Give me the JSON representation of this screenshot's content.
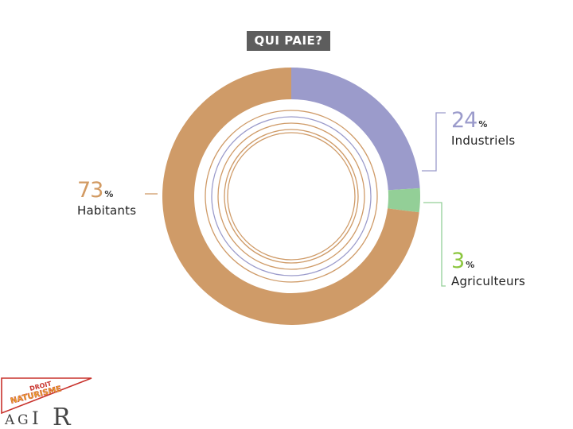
{
  "title": "QUI PAIE?",
  "chart_data": {
    "type": "pie",
    "title": "QUI PAIE?",
    "categories": [
      "Industriels",
      "Agriculteurs",
      "Habitants"
    ],
    "values": [
      24,
      3,
      73
    ],
    "unit": "%",
    "colors": [
      "#9b9bcb",
      "#93cf97",
      "#cf9b68"
    ]
  },
  "labels": [
    {
      "value": "24",
      "unit": "%",
      "name": "Industriels",
      "color": "#9b9bcb"
    },
    {
      "value": "3",
      "unit": "%",
      "name": "Agriculteurs",
      "color": "#8cc63f"
    },
    {
      "value": "73",
      "unit": "%",
      "name": "Habitants",
      "color": "#d29a62"
    }
  ],
  "logo": {
    "banner_line1": "DROIT",
    "banner_line2": "NATURISME",
    "wordmark_letters": [
      "A",
      "G",
      "I",
      "R"
    ]
  }
}
